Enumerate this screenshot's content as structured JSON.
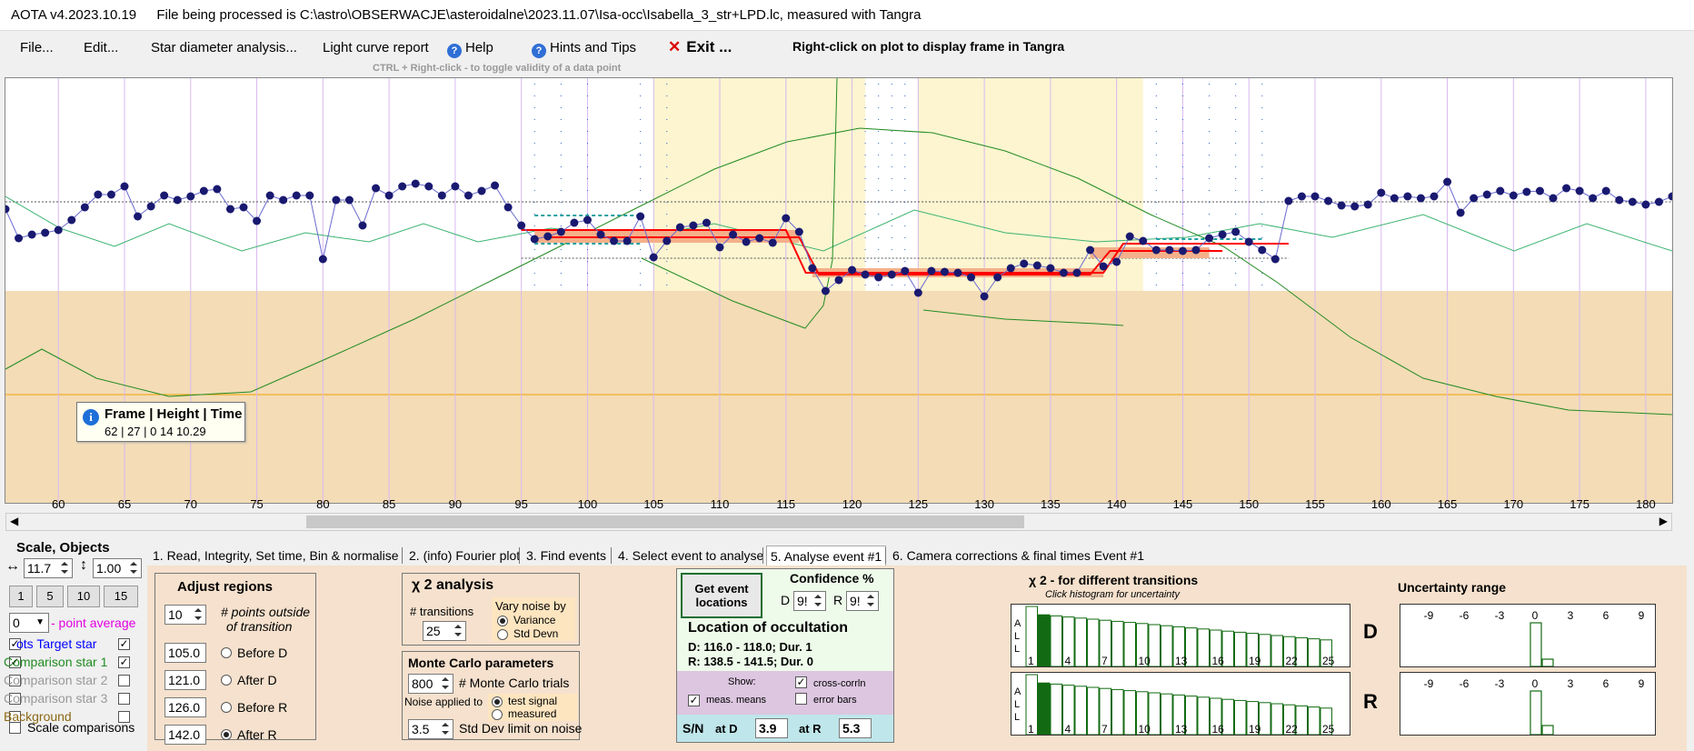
{
  "titlebar": {
    "app": "AOTA v4.2023.10.19",
    "file_text": "File being processed is C:\\astro\\OBSERWACJE\\asteroidalne\\2023.11.07\\Isa-occ\\Isabella_3_str+LPD.lc, measured with Tangra"
  },
  "menu": {
    "file": "File...",
    "edit": "Edit...",
    "star_diameter": "Star diameter analysis...",
    "light_curve_report": "Light curve report",
    "help": "Help",
    "hints": "Hints and Tips",
    "exit": "Exit ...",
    "rightclick_hint": "Right-click on plot to display frame in Tangra",
    "ctrl_hint": "CTRL + Right-click  -  to toggle validity of a data point"
  },
  "tooltip": {
    "title": "Frame | Height | Time",
    "value": "62 | 27 |  0 14 10.29"
  },
  "chart_data": {
    "type": "line",
    "x_ticks": [
      "60",
      "65",
      "70",
      "75",
      "80",
      "85",
      "90",
      "95",
      "100",
      "105",
      "110",
      "115",
      "120",
      "125",
      "130",
      "135",
      "140",
      "145",
      "150",
      "155",
      "160",
      "165",
      "170",
      "175",
      "180"
    ],
    "xlim": [
      56,
      182
    ],
    "target_star": {
      "x": [
        56,
        57,
        58,
        59,
        60,
        61,
        62,
        63,
        64,
        65,
        66,
        67,
        68,
        69,
        70,
        71,
        72,
        73,
        74,
        75,
        76,
        77,
        78,
        79,
        80,
        81,
        82,
        83,
        84,
        85,
        86,
        87,
        88,
        89,
        90,
        91,
        92,
        93,
        94,
        95,
        96,
        97,
        98,
        99,
        100,
        101,
        102,
        103,
        104,
        105,
        106,
        107,
        108,
        109,
        110,
        111,
        112,
        113,
        114,
        115,
        116,
        117,
        118,
        119,
        120,
        121,
        122,
        123,
        124,
        125,
        126,
        127,
        128,
        129,
        130,
        131,
        132,
        133,
        134,
        135,
        136,
        137,
        138,
        139,
        140,
        141,
        142,
        143,
        144,
        145,
        146,
        147,
        148,
        149,
        150,
        151,
        152,
        153,
        154,
        155,
        156,
        157,
        158,
        159,
        160,
        161,
        162,
        163,
        164,
        165,
        166,
        167,
        168,
        169,
        170,
        171,
        172,
        173,
        174,
        175,
        176,
        177,
        178,
        179,
        180,
        181,
        182
      ],
      "y": [
        230,
        262,
        258,
        256,
        253,
        242,
        228,
        214,
        214,
        205,
        238,
        227,
        215,
        220,
        216,
        210,
        208,
        230,
        228,
        243,
        215,
        220,
        215,
        215,
        285,
        220,
        220,
        248,
        207,
        215,
        205,
        202,
        205,
        215,
        205,
        215,
        210,
        204,
        228,
        248,
        263,
        260,
        255,
        245,
        242,
        258,
        265,
        265,
        238,
        283,
        265,
        250,
        248,
        245,
        272,
        258,
        266,
        262,
        267,
        240,
        255,
        295,
        320,
        308,
        297,
        302,
        305,
        302,
        298,
        322,
        298,
        299,
        300,
        305,
        326,
        305,
        295,
        290,
        292,
        295,
        300,
        300,
        275,
        293,
        288,
        260,
        265,
        275,
        275,
        276,
        275,
        262,
        258,
        255,
        266,
        275,
        285,
        221,
        216,
        216,
        221,
        226,
        227,
        225,
        212,
        218,
        216,
        218,
        216,
        200,
        234,
        218,
        214,
        210,
        215,
        211,
        210,
        218,
        207,
        210,
        218,
        210,
        220,
        222,
        225,
        222,
        216
      ],
      "color": "#191970"
    },
    "comparison_star_1": {
      "color": "#3cb371"
    },
    "region_values": {
      "before_d": "105.0",
      "after_d": "121.0",
      "before_r": "126.0",
      "after_r": "142.0"
    },
    "colors": {
      "grid": "#d8b8f0",
      "background_band": "#f3dcb6",
      "event_band": "#fcf5d0",
      "fit_line": "#ff0000",
      "baseline_line": "#f0a000",
      "comparison_line": "#228b22"
    },
    "grid": true
  },
  "tabs": [
    {
      "label": "1.  Read, Integrity, Set time, Bin & normalise"
    },
    {
      "label": "2. (info)  Fourier plot"
    },
    {
      "label": "3. Find events"
    },
    {
      "label": "4. Select event to analyse"
    },
    {
      "label": "5. Analyse event #1"
    },
    {
      "label": "6. Camera corrections & final times Event #1"
    }
  ],
  "left_panel": {
    "header": "Scale, Objects",
    "scale_h": "11.7",
    "scale_v": "1.00",
    "btn_1": "1",
    "btn_5": "5",
    "btn_10": "10",
    "btn_15": "15",
    "point_avg_value": "0",
    "point_avg_label": "- point average",
    "objects": [
      {
        "label": "ots  Target star",
        "color": "#0000ff",
        "checked": true
      },
      {
        "label": "Comparison star 1",
        "color": "#228b22",
        "checked": true
      },
      {
        "label": "Comparison star 2",
        "color": "#999999",
        "checked": false
      },
      {
        "label": "Comparison star 3",
        "color": "#999999",
        "checked": false
      },
      {
        "label": "Background",
        "color": "#8b6914",
        "checked": false
      }
    ],
    "scale_comparisons": "Scale comparisons"
  },
  "adjust_regions": {
    "title": "Adjust regions",
    "points_value": "10",
    "points_label_1": "# points outside",
    "points_label_2": "of transition",
    "rows": [
      {
        "value": "105.0",
        "label": "Before D",
        "selected": false
      },
      {
        "value": "121.0",
        "label": "After D",
        "selected": false
      },
      {
        "value": "126.0",
        "label": "Before R",
        "selected": false
      },
      {
        "value": "142.0",
        "label": "After R",
        "selected": true
      }
    ]
  },
  "chi2_analysis": {
    "title": "χ 2  analysis",
    "transitions_label": "# transitions",
    "transitions_value": "25",
    "vary_label_1": "Vary noise by",
    "variance": "Variance",
    "std_devn": "Std Devn"
  },
  "monte_carlo": {
    "title": "Monte Carlo parameters",
    "trials_value": "800",
    "trials_label": "# Monte Carlo trials",
    "noise_applied": "Noise applied to",
    "test_signal": "test signal",
    "measured": "measured",
    "std_dev_value": "3.5",
    "std_dev_label": "Std Dev limit on noise"
  },
  "event_panel": {
    "get_event_1": "Get event",
    "get_event_2": "locations",
    "confidence_title": "Confidence %",
    "d_label": "D",
    "d_value": "9!",
    "r_label": "R",
    "r_value": "9!",
    "location_title": "Location of occultation",
    "d_result": "D: 116.0 - 118.0; Dur. 1",
    "r_result": "R: 138.5 - 141.5; Dur. 0",
    "show_label": "Show:",
    "meas_means": "meas. means",
    "cross_corrln": "cross-corrln",
    "error_bars": "error bars",
    "sn_label": "S/N",
    "at_d": "at D",
    "at_d_value": "3.9",
    "at_r": "at R",
    "at_r_value": "5.3"
  },
  "chi2_hist": {
    "title": "χ 2  - for different transitions",
    "subtitle": "Click histogram for uncertainty",
    "x_labels": [
      "1",
      "4",
      "7",
      "10",
      "13",
      "16",
      "19",
      "22",
      "25"
    ],
    "d_label": "D",
    "r_label": "R",
    "side_letters": [
      "A",
      "L",
      "L"
    ]
  },
  "uncertainty": {
    "title": "Uncertainty range",
    "x_labels": [
      "-9",
      "-6",
      "-3",
      "0",
      "3",
      "6",
      "9"
    ]
  }
}
